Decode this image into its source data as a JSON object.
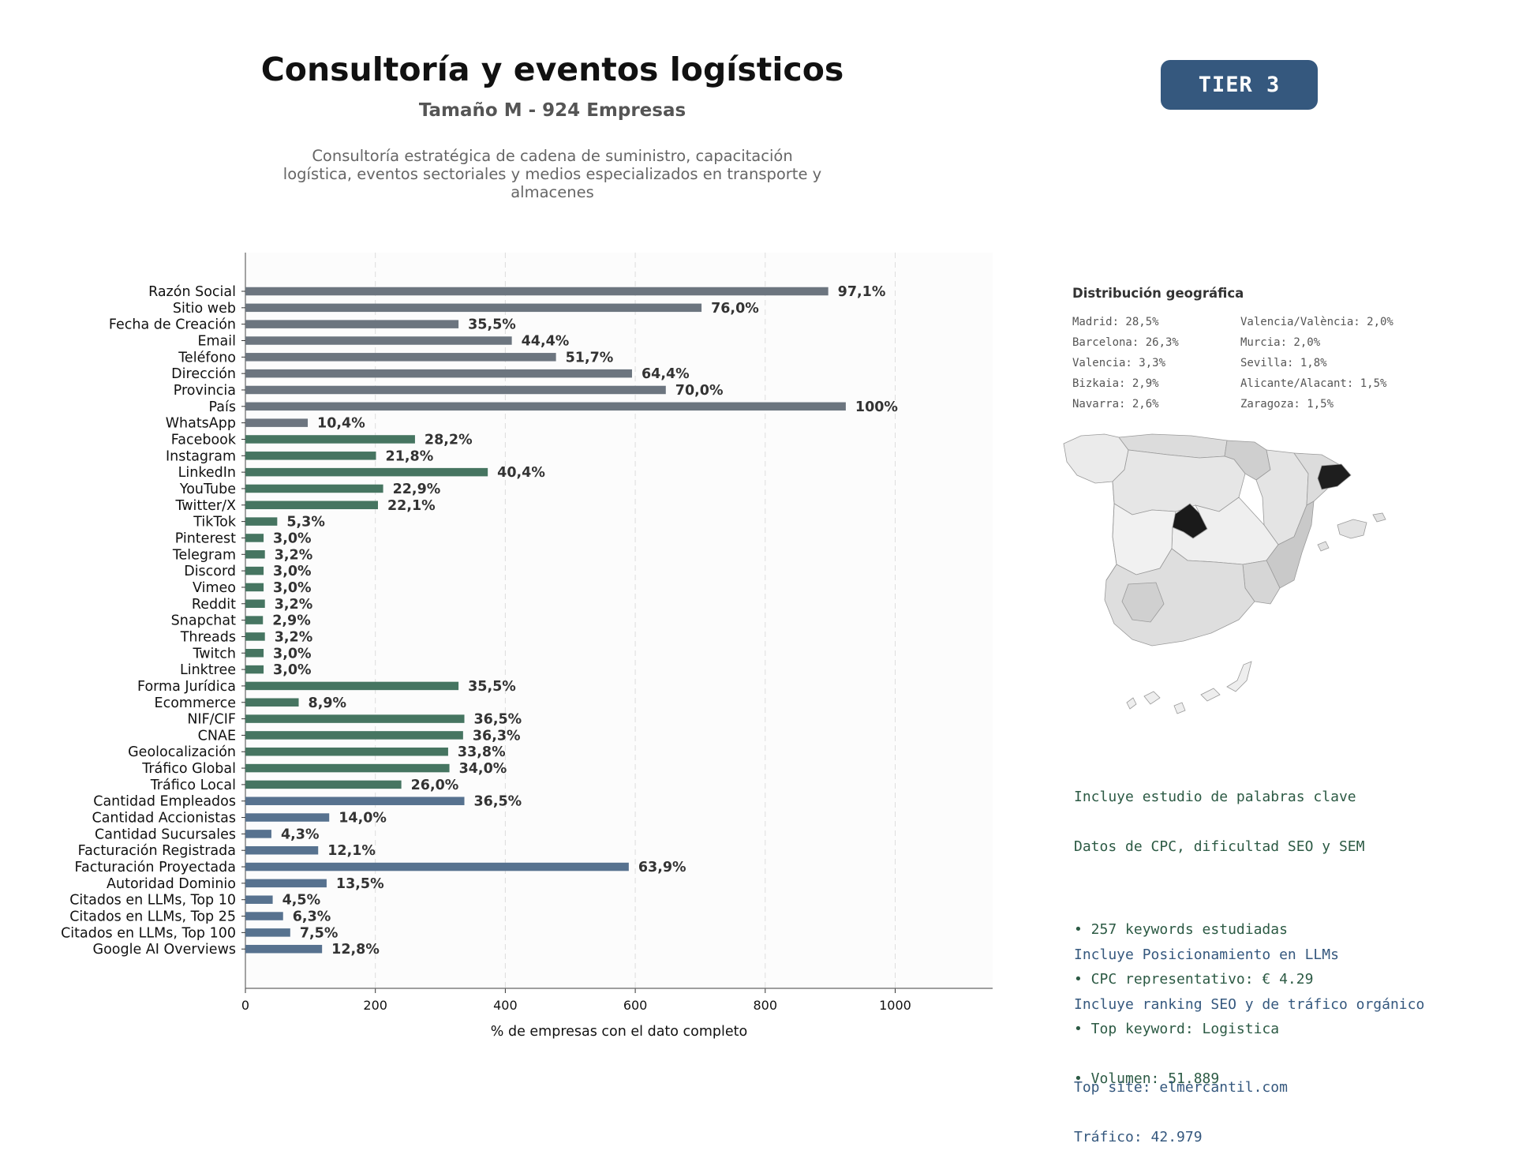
{
  "header": {
    "title": "Consultoría y eventos logísticos",
    "subtitle": "Tamaño M - 924 Empresas",
    "description_lines": [
      "Consultoría estratégica de cadena de suministro, capacitación",
      "logística, eventos sectoriales y medios especializados en transporte y",
      "almacenes"
    ],
    "tier_badge": "TIER 3"
  },
  "chart_data": {
    "type": "bar",
    "orientation": "horizontal",
    "xlabel": "% de empresas con el dato completo",
    "xlim": [
      0,
      1150
    ],
    "xticks": [
      0,
      200,
      400,
      600,
      800,
      1000
    ],
    "grid": "vertical dashed",
    "colors": {
      "basic": "#6c757f",
      "social": "#467561",
      "business": "#57728f"
    },
    "categories": [
      "Razón Social",
      "Sitio web",
      "Fecha de Creación",
      "Email",
      "Teléfono",
      "Dirección",
      "Provincia",
      "País",
      "WhatsApp",
      "Facebook",
      "Instagram",
      "LinkedIn",
      "YouTube",
      "Twitter/X",
      "TikTok",
      "Pinterest",
      "Telegram",
      "Discord",
      "Vimeo",
      "Reddit",
      "Snapchat",
      "Threads",
      "Twitch",
      "Linktree",
      "Forma Jurídica",
      "Ecommerce",
      "NIF/CIF",
      "CNAE",
      "Geolocalización",
      "Tráfico Global",
      "Tráfico Local",
      "Cantidad Empleados",
      "Cantidad Accionistas",
      "Cantidad Sucursales",
      "Facturación Registrada",
      "Facturación Proyectada",
      "Autoridad Dominio",
      "Citados en LLMs, Top 10",
      "Citados en LLMs, Top 25",
      "Citados en LLMs, Top 100",
      "Google AI Overviews"
    ],
    "values": [
      897,
      702,
      328,
      410,
      478,
      595,
      647,
      924,
      96,
      261,
      201,
      373,
      212,
      204,
      49,
      28,
      30,
      28,
      28,
      30,
      27,
      30,
      28,
      28,
      328,
      82,
      337,
      335,
      312,
      314,
      240,
      337,
      129,
      40,
      112,
      590,
      125,
      42,
      58,
      69,
      118
    ],
    "labels": [
      "97,1%",
      "76,0%",
      "35,5%",
      "44,4%",
      "51,7%",
      "64,4%",
      "70,0%",
      "100%",
      "10,4%",
      "28,2%",
      "21,8%",
      "40,4%",
      "22,9%",
      "22,1%",
      "5,3%",
      "3,0%",
      "3,2%",
      "3,0%",
      "3,0%",
      "3,2%",
      "2,9%",
      "3,2%",
      "3,0%",
      "3,0%",
      "35,5%",
      "8,9%",
      "36,5%",
      "36,3%",
      "33,8%",
      "34,0%",
      "26,0%",
      "36,5%",
      "14,0%",
      "4,3%",
      "12,1%",
      "63,9%",
      "13,5%",
      "4,5%",
      "6,3%",
      "7,5%",
      "12,8%"
    ],
    "groups": [
      "basic",
      "basic",
      "basic",
      "basic",
      "basic",
      "basic",
      "basic",
      "basic",
      "basic",
      "social",
      "social",
      "social",
      "social",
      "social",
      "social",
      "social",
      "social",
      "social",
      "social",
      "social",
      "social",
      "social",
      "social",
      "social",
      "social",
      "social",
      "social",
      "social",
      "social",
      "social",
      "social",
      "business",
      "business",
      "business",
      "business",
      "business",
      "business",
      "business",
      "business",
      "business",
      "business"
    ]
  },
  "geo": {
    "title": "Distribución geográfica",
    "col1": [
      "Madrid: 28,5%",
      "Barcelona: 26,3%",
      "Valencia: 3,3%",
      "Bizkaia: 2,9%",
      "Navarra: 2,6%"
    ],
    "col2": [
      "Valencia/València: 2,0%",
      "Murcia: 2,0%",
      "Sevilla: 1,8%",
      "Alicante/Alacant: 1,5%",
      "Zaragoza: 1,5%"
    ]
  },
  "seo": {
    "lines": [
      "Incluye estudio de palabras clave",
      "Datos de CPC, dificultad SEO y SEM",
      "",
      "• 257 keywords estudiadas",
      "• CPC representativo: € 4.29",
      "• Top keyword: Logistica",
      "• Volumen: 51.889"
    ]
  },
  "llm": {
    "lines": [
      "Incluye Posicionamiento en LLMs",
      "Incluye ranking SEO y de tráfico orgánico",
      "",
      "Top site: elmercantil.com",
      "Tráfico: 42.979"
    ]
  }
}
